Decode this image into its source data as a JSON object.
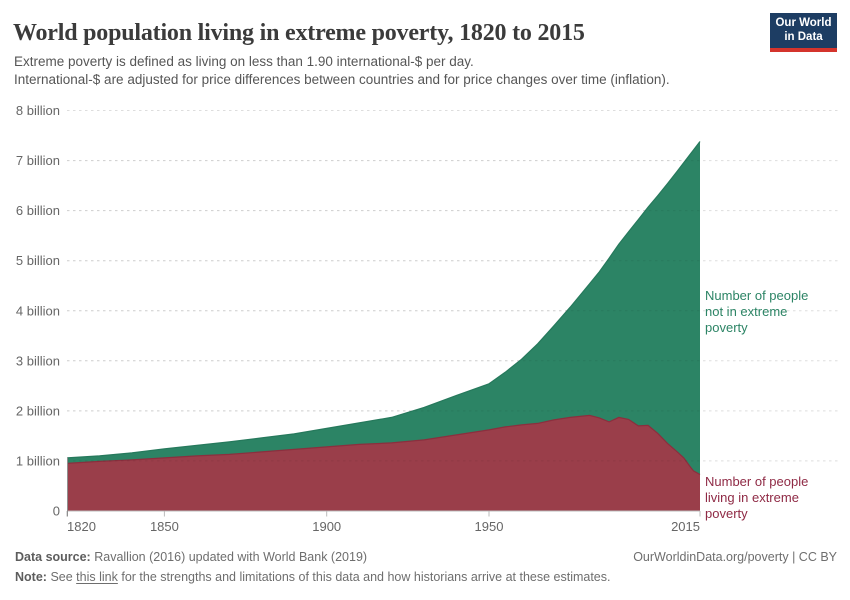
{
  "header": {
    "title": "World population living in extreme poverty, 1820 to 2015",
    "subtitle_line1": "Extreme poverty is defined as living on less than 1.90 international-$ per day.",
    "subtitle_line2": "International-$ are adjusted for price differences between countries and for price changes over time (inflation)."
  },
  "logo": {
    "line1": "Our World",
    "line2": "in Data"
  },
  "chart_data": {
    "type": "area",
    "stacked": true,
    "title": "World population living in extreme poverty, 1820 to 2015",
    "xlabel": "",
    "ylabel": "",
    "xlim": [
      1820,
      2015
    ],
    "ylim": [
      0,
      8
    ],
    "grid": "horizontal-dashed",
    "legend_position": "right-inline",
    "x": [
      1820,
      1830,
      1840,
      1850,
      1860,
      1870,
      1880,
      1890,
      1900,
      1910,
      1920,
      1930,
      1940,
      1950,
      1955,
      1960,
      1965,
      1970,
      1975,
      1981,
      1984,
      1987,
      1990,
      1993,
      1996,
      1999,
      2002,
      2005,
      2008,
      2010,
      2012,
      2013,
      2015
    ],
    "series": [
      {
        "name": "Number of people living in extreme poverty",
        "color": "#9a3e4a",
        "stroke": "#8b2f3e",
        "values": [
          0.95,
          0.99,
          1.02,
          1.06,
          1.1,
          1.13,
          1.18,
          1.23,
          1.28,
          1.33,
          1.36,
          1.42,
          1.52,
          1.62,
          1.68,
          1.72,
          1.75,
          1.82,
          1.87,
          1.91,
          1.86,
          1.78,
          1.87,
          1.83,
          1.7,
          1.71,
          1.55,
          1.35,
          1.18,
          1.06,
          0.88,
          0.8,
          0.73
        ]
      },
      {
        "name": "Number of people not in extreme poverty",
        "color": "#2c8465",
        "stroke": "#26795c",
        "values": [
          0.11,
          0.11,
          0.14,
          0.18,
          0.21,
          0.25,
          0.28,
          0.31,
          0.37,
          0.43,
          0.51,
          0.65,
          0.79,
          0.92,
          1.09,
          1.31,
          1.59,
          1.88,
          2.2,
          2.63,
          2.92,
          3.27,
          3.46,
          3.75,
          4.12,
          4.36,
          4.75,
          5.19,
          5.61,
          5.9,
          6.25,
          6.41,
          6.65
        ]
      }
    ],
    "x_ticks": [
      {
        "v": 1820,
        "label": "1820"
      },
      {
        "v": 1850,
        "label": "1850"
      },
      {
        "v": 1900,
        "label": "1900"
      },
      {
        "v": 1950,
        "label": "1950"
      },
      {
        "v": 2015,
        "label": "2015"
      }
    ],
    "y_ticks": [
      {
        "v": 0,
        "label": "0"
      },
      {
        "v": 1,
        "label": "1 billion"
      },
      {
        "v": 2,
        "label": "2 billion"
      },
      {
        "v": 3,
        "label": "3 billion"
      },
      {
        "v": 4,
        "label": "4 billion"
      },
      {
        "v": 5,
        "label": "5 billion"
      },
      {
        "v": 6,
        "label": "6 billion"
      },
      {
        "v": 7,
        "label": "7 billion"
      },
      {
        "v": 8,
        "label": "8 billion"
      }
    ]
  },
  "colors": {
    "green": "#2c8465",
    "green_stroke": "#26795c",
    "green_text": "#2c8465",
    "red": "#9a3e4a",
    "red_stroke": "#8b2f3e",
    "red_text": "#8f2a45",
    "navy": "#1d3d63",
    "logo_red": "#d4342c",
    "axis_text": "#666666",
    "grid": "#dddddd",
    "axis_line": "#bbbbbb",
    "title_text": "#3b3b3b",
    "subtitle_text": "#565656",
    "footer_text": "#6e6e6e"
  },
  "footer": {
    "datasource_label": "Data source:",
    "datasource_text": "Ravallion (2016) updated with World Bank (2019)",
    "attribution": "OurWorldinData.org/poverty | CC BY",
    "note_label": "Note:",
    "note_before": "See",
    "note_link": "this link",
    "note_after": "for the strengths and limitations of this data and how historians arrive at these estimates."
  }
}
